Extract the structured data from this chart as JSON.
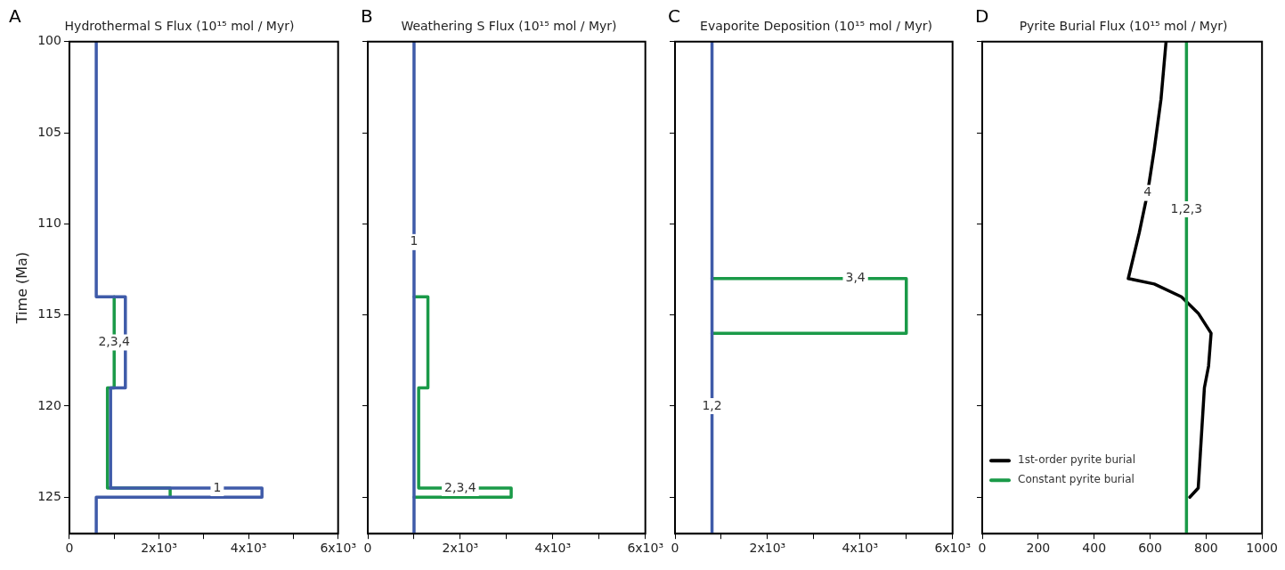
{
  "chart_data": [
    {
      "type": "line",
      "title": "Hydrothermal S Flux (10¹⁵ mol / Myr)",
      "ylabel": "Time (Ma)",
      "annotations": [
        "A",
        {
          "text": "2,3,4",
          "x": 1000,
          "y": 116.5
        },
        {
          "text": "1",
          "x": 3300,
          "y": 124.5
        }
      ],
      "xlim": [
        0,
        6000
      ],
      "xticks": [
        0,
        {
          "value": 1000,
          "label": null
        },
        {
          "value": 2000,
          "label": "2x10³"
        },
        {
          "value": 3000,
          "label": null
        },
        {
          "value": 4000,
          "label": "4x10³"
        },
        {
          "value": 5000,
          "label": null
        },
        {
          "value": 6000,
          "label": "6x10³"
        }
      ],
      "ylim": [
        127,
        100
      ],
      "yticks": [
        100,
        105,
        110,
        115,
        120,
        125
      ],
      "grid": false,
      "series": [
        {
          "color": "#1a9a48",
          "x": [
            1000,
            1000,
            850,
            850,
            2250,
            2250
          ],
          "values": [
            114,
            119,
            119,
            124.5,
            124.5,
            125
          ]
        },
        {
          "color": "#3f5ba9",
          "x": [
            600,
            600,
            1250,
            1250,
            920,
            920,
            4300,
            4300,
            600,
            600
          ],
          "values": [
            100,
            114,
            114,
            119,
            119,
            124.5,
            124.5,
            125,
            125,
            127
          ]
        }
      ]
    },
    {
      "type": "line",
      "title": "Weathering S Flux (10¹⁵ mol / Myr)",
      "annotations": [
        "B",
        {
          "text": "1",
          "x": 1000,
          "y": 111
        },
        {
          "text": "2,3,4",
          "x": 2000,
          "y": 124.5
        }
      ],
      "xlim": [
        0,
        6000
      ],
      "xticks": [
        0,
        {
          "value": 1000,
          "label": null
        },
        {
          "value": 2000,
          "label": "2x10³"
        },
        {
          "value": 3000,
          "label": null
        },
        {
          "value": 4000,
          "label": "4x10³"
        },
        {
          "value": 5000,
          "label": null
        },
        {
          "value": 6000,
          "label": "6x10³"
        }
      ],
      "ylim": [
        127,
        100
      ],
      "yticks": [
        100,
        105,
        110,
        115,
        120,
        125
      ],
      "grid": false,
      "tick_labels": "x",
      "series": [
        {
          "color": "#1a9a48",
          "x": [
            1000,
            1300,
            1300,
            1100,
            1100,
            3100,
            3100,
            1000
          ],
          "values": [
            114,
            114,
            119,
            119,
            124.5,
            124.5,
            125,
            125
          ]
        },
        {
          "color": "#3f5ba9",
          "x": [
            1000,
            1000
          ],
          "values": [
            100,
            127
          ]
        }
      ]
    },
    {
      "type": "line",
      "title": "Evaporite Deposition (10¹⁵ mol / Myr)",
      "annotations": [
        "C",
        {
          "text": "3,4",
          "x": 3900,
          "y": 113
        },
        {
          "text": "1,2",
          "x": 800,
          "y": 120
        }
      ],
      "xlim": [
        0,
        6000
      ],
      "xticks": [
        0,
        {
          "value": 1000,
          "label": null
        },
        {
          "value": 2000,
          "label": "2x10³"
        },
        {
          "value": 3000,
          "label": null
        },
        {
          "value": 4000,
          "label": "4x10³"
        },
        {
          "value": 5000,
          "label": null
        },
        {
          "value": 6000,
          "label": "6x10³"
        }
      ],
      "ylim": [
        127,
        100
      ],
      "yticks": [
        100,
        105,
        110,
        115,
        120,
        125
      ],
      "grid": false,
      "tick_labels": "x",
      "series": [
        {
          "color": "#1a9a48",
          "x": [
            800,
            5000,
            5000,
            800
          ],
          "values": [
            113,
            113,
            116,
            116
          ]
        },
        {
          "color": "#3f5ba9",
          "x": [
            800,
            800
          ],
          "values": [
            100,
            127
          ]
        }
      ]
    },
    {
      "type": "line",
      "title": "Pyrite Burial Flux (10¹⁵ mol / Myr)",
      "annotations": [
        "D",
        {
          "text": "4",
          "x": 591,
          "y": 108.3
        },
        {
          "text": "1,2,3",
          "x": 730,
          "y": 109.2
        }
      ],
      "xlim": [
        0,
        1000
      ],
      "xticks": [
        0,
        200,
        400,
        600,
        800,
        1000
      ],
      "ylim": [
        127,
        100
      ],
      "yticks": [
        100,
        105,
        110,
        115,
        120,
        125
      ],
      "grid": false,
      "tick_labels": "x",
      "legend": "bottom left",
      "series": [
        {
          "name": "1st-order pyrite burial",
          "color": "#000000",
          "x": [
            657,
            639,
            615,
            591,
            561,
            522,
            615,
            712,
            772,
            818,
            809,
            794,
            772,
            742
          ],
          "values": [
            100,
            103.15,
            105.9,
            108.3,
            110.5,
            113,
            113.3,
            114,
            114.9,
            116,
            117.8,
            119,
            124.5,
            125
          ]
        },
        {
          "name": "Constant pyrite burial",
          "color": "#1a9a48",
          "x": [
            730,
            730
          ],
          "values": [
            100,
            127
          ]
        }
      ]
    }
  ]
}
